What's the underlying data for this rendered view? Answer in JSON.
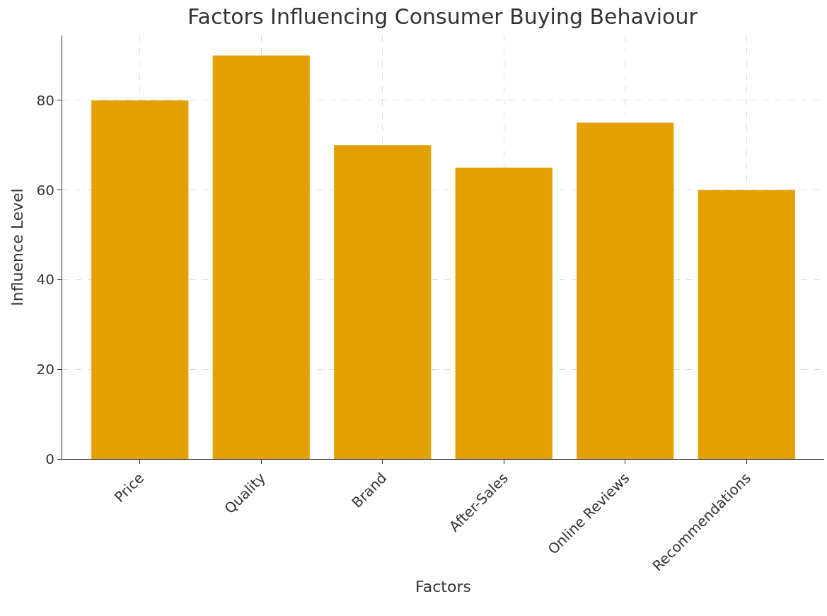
{
  "chart_data": {
    "type": "bar",
    "title": "Factors Influencing Consumer Buying Behaviour",
    "xlabel": "Factors",
    "ylabel": "Influence Level",
    "categories": [
      "Price",
      "Quality",
      "Brand",
      "After-Sales",
      "Online Reviews",
      "Recommendations"
    ],
    "values": [
      80,
      90,
      70,
      65,
      75,
      60
    ],
    "color": "#e3a000",
    "ylim": [
      0,
      94.5
    ],
    "yticks": [
      0,
      20,
      40,
      60,
      80
    ],
    "grid": true
  }
}
